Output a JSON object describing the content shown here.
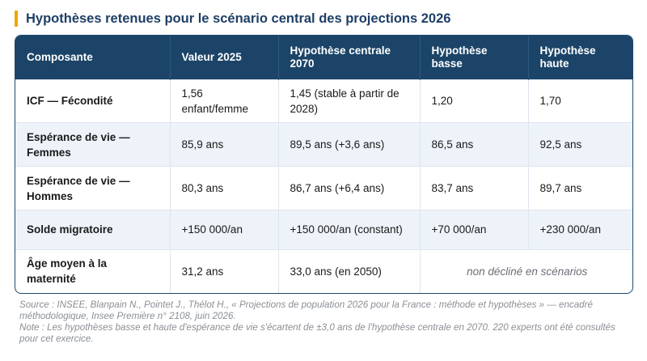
{
  "title": "Hypothèses retenues pour le scénario central des projections 2026",
  "table": {
    "headers": [
      "Composante",
      "Valeur 2025",
      "Hypothèse centrale 2070",
      "Hypothèse basse",
      "Hypothèse haute"
    ],
    "rows": [
      [
        "ICF — Fécondité",
        "1,56 enfant/femme",
        "1,45 (stable à partir de 2028)",
        "1,20",
        "1,70"
      ],
      [
        "Espérance de vie — Femmes",
        "85,9 ans",
        "89,5 ans (+3,6 ans)",
        "86,5 ans",
        "92,5 ans"
      ],
      [
        "Espérance de vie — Hommes",
        "80,3 ans",
        "86,7 ans (+6,4 ans)",
        "83,7 ans",
        "89,7 ans"
      ],
      [
        "Solde migratoire",
        "+150 000/an",
        "+150 000/an (constant)",
        "+70 000/an",
        "+230 000/an"
      ],
      [
        "Âge moyen à la maternité",
        "31,2 ans",
        "33,0 ans (en 2050)",
        "non décliné en scénarios"
      ]
    ]
  },
  "source": "Source : INSEE, Blanpain N., Pointet J., Thélot H., « Projections de population 2026 pour la France : méthode et hypothèses » — encadré méthodologique, Insee Première n° 2108, juin 2026.",
  "note": "Note : Les hypothèses basse et haute d'espérance de vie s'écartent de ±3,0 ans de l'hypothèse centrale en 2070. 220 experts ont été consultés pour cet exercice.",
  "colors": {
    "accent_bar": "#f0a500",
    "title": "#1e3f66",
    "header_bg": "#1b4468",
    "alt_row_bg": "#eef3fa"
  }
}
